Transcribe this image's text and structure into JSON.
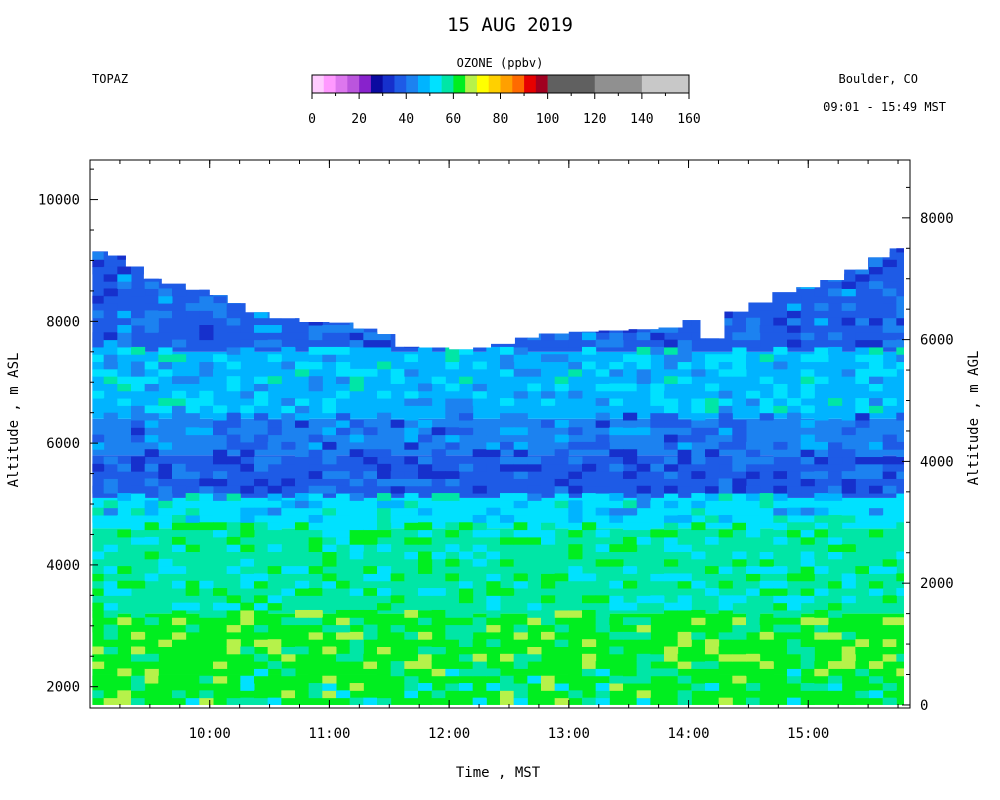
{
  "header": {
    "title": "15 AUG 2019",
    "instrument": "TOPAZ",
    "location": "Boulder, CO",
    "time_range": "09:01 - 15:49 MST"
  },
  "colorbar": {
    "label": "OZONE (ppbv)",
    "tick_labels": [
      "0",
      "20",
      "40",
      "60",
      "80",
      "100",
      "120",
      "140",
      "160"
    ],
    "segments": [
      {
        "from": 0,
        "to": 5,
        "color": "#ffccff"
      },
      {
        "from": 5,
        "to": 10,
        "color": "#ff99ff"
      },
      {
        "from": 10,
        "to": 15,
        "color": "#dd77ee"
      },
      {
        "from": 15,
        "to": 20,
        "color": "#bb55dd"
      },
      {
        "from": 20,
        "to": 25,
        "color": "#8822cc"
      },
      {
        "from": 25,
        "to": 30,
        "color": "#0a0aa0"
      },
      {
        "from": 30,
        "to": 35,
        "color": "#1630cc"
      },
      {
        "from": 35,
        "to": 40,
        "color": "#1e5be6"
      },
      {
        "from": 40,
        "to": 45,
        "color": "#1c82f0"
      },
      {
        "from": 45,
        "to": 50,
        "color": "#00b4ff"
      },
      {
        "from": 50,
        "to": 55,
        "color": "#00e1ff"
      },
      {
        "from": 55,
        "to": 60,
        "color": "#00e6a6"
      },
      {
        "from": 60,
        "to": 65,
        "color": "#00ee20"
      },
      {
        "from": 65,
        "to": 70,
        "color": "#b6f24a"
      },
      {
        "from": 70,
        "to": 75,
        "color": "#ffff00"
      },
      {
        "from": 75,
        "to": 80,
        "color": "#ffd000"
      },
      {
        "from": 80,
        "to": 85,
        "color": "#ffa000"
      },
      {
        "from": 85,
        "to": 90,
        "color": "#ff6a00"
      },
      {
        "from": 90,
        "to": 95,
        "color": "#e60000"
      },
      {
        "from": 95,
        "to": 100,
        "color": "#a00020"
      },
      {
        "from": 100,
        "to": 120,
        "color": "#606060"
      },
      {
        "from": 120,
        "to": 140,
        "color": "#909090"
      },
      {
        "from": 140,
        "to": 160,
        "color": "#c8c8c8"
      }
    ]
  },
  "chart_data": {
    "type": "heatmap",
    "xlabel": "Time , MST",
    "ylabel_left": "Altitude , m ASL",
    "ylabel_right": "Altitude , m AGL",
    "x_ticks": [
      "10:00",
      "11:00",
      "12:00",
      "13:00",
      "14:00",
      "15:00"
    ],
    "y_ticks_left": [
      "2000",
      "4000",
      "6000",
      "8000",
      "10000"
    ],
    "y_ticks_right": [
      "0",
      "2000",
      "4000",
      "6000",
      "8000"
    ],
    "xlim_hours": [
      9.0,
      15.85
    ],
    "ylim_asl_m": [
      1650,
      10650
    ],
    "surface_asl_m": 1700,
    "profile_top_m": [
      [
        9.02,
        9150
      ],
      [
        9.15,
        9080
      ],
      [
        9.3,
        8900
      ],
      [
        9.45,
        8700
      ],
      [
        9.6,
        8620
      ],
      [
        9.8,
        8520
      ],
      [
        10.0,
        8430
      ],
      [
        10.15,
        8300
      ],
      [
        10.3,
        8150
      ],
      [
        10.5,
        8050
      ],
      [
        10.75,
        7990
      ],
      [
        11.0,
        7980
      ],
      [
        11.2,
        7880
      ],
      [
        11.4,
        7790
      ],
      [
        11.55,
        7580
      ],
      [
        11.75,
        7570
      ],
      [
        12.0,
        7540
      ],
      [
        12.2,
        7570
      ],
      [
        12.35,
        7630
      ],
      [
        12.55,
        7730
      ],
      [
        12.75,
        7800
      ],
      [
        13.0,
        7830
      ],
      [
        13.25,
        7850
      ],
      [
        13.5,
        7870
      ],
      [
        13.75,
        7900
      ],
      [
        13.95,
        8020
      ],
      [
        14.1,
        7720
      ],
      [
        14.3,
        8160
      ],
      [
        14.5,
        8310
      ],
      [
        14.7,
        8480
      ],
      [
        14.9,
        8560
      ],
      [
        15.1,
        8680
      ],
      [
        15.3,
        8850
      ],
      [
        15.5,
        9050
      ],
      [
        15.68,
        9200
      ]
    ],
    "ozone_layers": [
      {
        "from_m": 1700,
        "to_m": 2200,
        "ozone_ppbv": 60
      },
      {
        "from_m": 2200,
        "to_m": 3200,
        "ozone_ppbv": 62
      },
      {
        "from_m": 3200,
        "to_m": 4600,
        "ozone_ppbv": 57
      },
      {
        "from_m": 4600,
        "to_m": 5100,
        "ozone_ppbv": 50
      },
      {
        "from_m": 5100,
        "to_m": 5800,
        "ozone_ppbv": 37
      },
      {
        "from_m": 5800,
        "to_m": 6400,
        "ozone_ppbv": 41
      },
      {
        "from_m": 6400,
        "to_m": 7500,
        "ozone_ppbv": 49
      },
      {
        "from_m": 7500,
        "to_m": 9200,
        "ozone_ppbv": 39
      }
    ],
    "colorbar_label": "OZONE (ppbv)"
  }
}
